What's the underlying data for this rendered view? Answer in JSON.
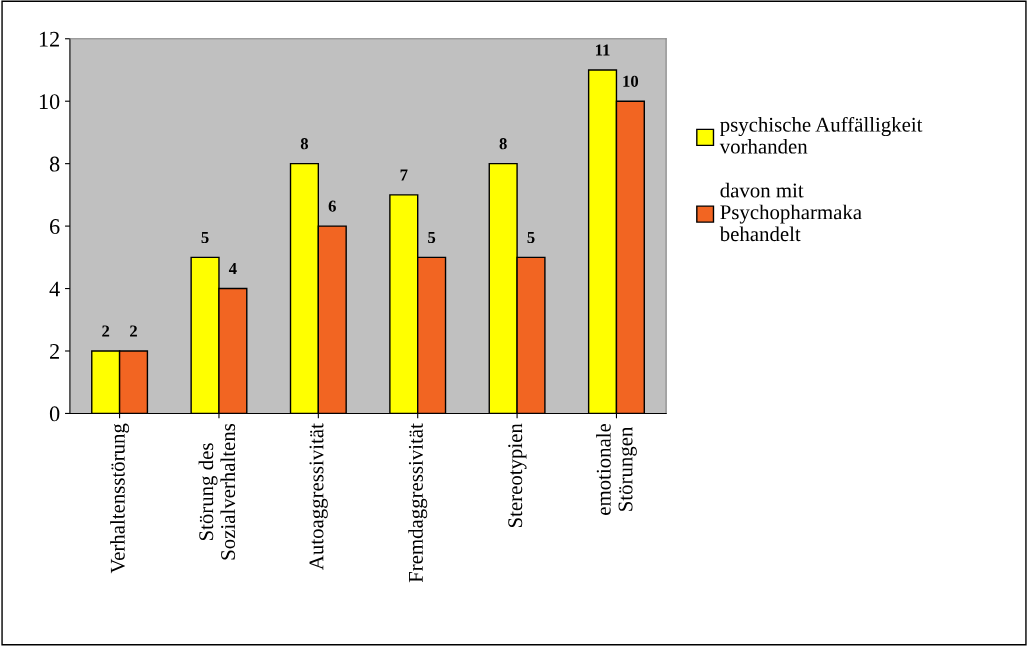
{
  "chart_data": {
    "type": "bar",
    "categories": [
      "Verhaltensstörung",
      "Störung des\nSozialverhaltens",
      "Autoaggressivität",
      "Fremdaggressivität",
      "Stereotypien",
      "emotionale\nStörungen"
    ],
    "series": [
      {
        "name": "psychische Auffälligkeit\nvorhanden",
        "color": "#ffff00",
        "values": [
          2,
          5,
          8,
          7,
          8,
          11
        ]
      },
      {
        "name": "davon mit\nPsychopharmaka\nbehandelt",
        "color": "#f26522",
        "values": [
          2,
          4,
          6,
          5,
          5,
          10
        ]
      }
    ],
    "ylim": [
      0,
      12
    ],
    "yticks": [
      0,
      2,
      4,
      6,
      8,
      10,
      12
    ],
    "grid": false,
    "legend": "right",
    "data_labels": true
  }
}
